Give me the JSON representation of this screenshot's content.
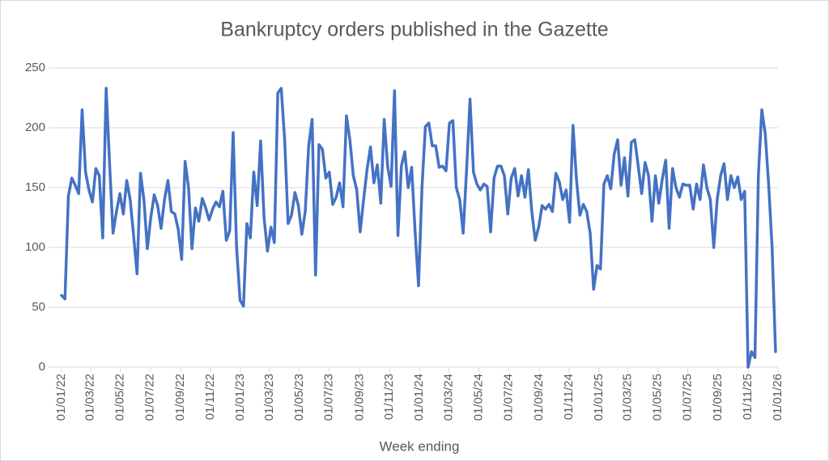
{
  "chart_data": {
    "type": "line",
    "title": "Bankruptcy orders published in the Gazette",
    "xlabel": "Week ending",
    "color": "#4472c4",
    "grid": true,
    "ylim": [
      0,
      250
    ],
    "yticks": [
      0,
      50,
      100,
      150,
      200,
      250
    ],
    "xlim": [
      "01/01/22",
      "01/01/26"
    ],
    "xticks": [
      "01/01/22",
      "01/03/22",
      "01/05/22",
      "01/07/22",
      "01/09/22",
      "01/11/22",
      "01/01/23",
      "01/03/23",
      "01/05/23",
      "01/07/23",
      "01/09/23",
      "01/11/23",
      "01/01/24",
      "01/03/24",
      "01/05/24",
      "01/07/24",
      "01/09/24",
      "01/11/24",
      "01/01/25",
      "01/03/25",
      "01/05/25",
      "01/07/25",
      "01/09/25",
      "01/11/25",
      "01/01/26"
    ],
    "x": [
      "01/01/22",
      "08/01/22",
      "15/01/22",
      "22/01/22",
      "29/01/22",
      "05/02/22",
      "12/02/22",
      "19/02/22",
      "26/02/22",
      "05/03/22",
      "12/03/22",
      "19/03/22",
      "26/03/22",
      "02/04/22",
      "09/04/22",
      "16/04/22",
      "23/04/22",
      "30/04/22",
      "07/05/22",
      "14/05/22",
      "21/05/22",
      "28/05/22",
      "04/06/22",
      "11/06/22",
      "18/06/22",
      "25/06/22",
      "02/07/22",
      "09/07/22",
      "16/07/22",
      "23/07/22",
      "30/07/22",
      "06/08/22",
      "13/08/22",
      "20/08/22",
      "27/08/22",
      "03/09/22",
      "10/09/22",
      "17/09/22",
      "24/09/22",
      "01/10/22",
      "08/10/22",
      "15/10/22",
      "22/10/22",
      "29/10/22",
      "05/11/22",
      "12/11/22",
      "19/11/22",
      "26/11/22",
      "03/12/22",
      "10/12/22",
      "17/12/22",
      "24/12/22",
      "31/12/22",
      "07/01/23",
      "14/01/23",
      "21/01/23",
      "28/01/23",
      "04/02/23",
      "11/02/23",
      "18/02/23",
      "25/02/23",
      "04/03/23",
      "11/03/23",
      "18/03/23",
      "25/03/23",
      "01/04/23",
      "08/04/23",
      "15/04/23",
      "22/04/23",
      "29/04/23",
      "06/05/23",
      "13/05/23",
      "20/05/23",
      "27/05/23",
      "03/06/23",
      "10/06/23",
      "17/06/23",
      "24/06/23",
      "01/07/23",
      "08/07/23",
      "15/07/23",
      "22/07/23",
      "29/07/23",
      "05/08/23",
      "12/08/23",
      "19/08/23",
      "26/08/23",
      "02/09/23",
      "09/09/23",
      "16/09/23",
      "23/09/23",
      "30/09/23",
      "07/10/23",
      "14/10/23",
      "21/10/23",
      "28/10/23",
      "04/11/23",
      "11/11/23",
      "18/11/23",
      "25/11/23",
      "02/12/23",
      "09/12/23",
      "16/12/23",
      "23/12/23",
      "30/12/23",
      "06/01/24",
      "13/01/24",
      "20/01/24",
      "27/01/24",
      "03/02/24",
      "10/02/24",
      "17/02/24",
      "24/02/24",
      "02/03/24",
      "09/03/24",
      "16/03/24",
      "23/03/24",
      "30/03/24",
      "06/04/24",
      "13/04/24",
      "20/04/24",
      "27/04/24",
      "04/05/24",
      "11/05/24",
      "18/05/24",
      "25/05/24",
      "01/06/24",
      "08/06/24",
      "15/06/24",
      "22/06/24",
      "29/06/24",
      "06/07/24",
      "13/07/24",
      "20/07/24",
      "27/07/24",
      "03/08/24",
      "10/08/24",
      "17/08/24",
      "24/08/24",
      "31/08/24",
      "07/09/24",
      "14/09/24",
      "21/09/24",
      "28/09/24",
      "05/10/24",
      "12/10/24",
      "19/10/24",
      "26/10/24",
      "02/11/24",
      "09/11/24",
      "16/11/24",
      "23/11/24",
      "30/11/24",
      "07/12/24",
      "14/12/24",
      "21/12/24",
      "28/12/24",
      "04/01/25",
      "11/01/25",
      "18/01/25",
      "25/01/25",
      "01/02/25",
      "08/02/25",
      "15/02/25",
      "22/02/25",
      "01/03/25",
      "08/03/25",
      "15/03/25",
      "22/03/25",
      "29/03/25",
      "05/04/25",
      "12/04/25",
      "19/04/25",
      "26/04/25",
      "03/05/25",
      "10/05/25",
      "17/05/25",
      "24/05/25",
      "31/05/25",
      "07/06/25",
      "14/06/25",
      "21/06/25",
      "28/06/25",
      "05/07/25",
      "12/07/25",
      "19/07/25",
      "26/07/25",
      "02/08/25",
      "09/08/25",
      "16/08/25",
      "23/08/25",
      "30/08/25",
      "06/09/25",
      "13/09/25",
      "20/09/25",
      "27/09/25",
      "04/10/25",
      "11/10/25",
      "18/10/25",
      "25/10/25",
      "01/11/25",
      "08/11/25",
      "15/11/25",
      "22/11/25",
      "29/11/25",
      "06/12/25",
      "13/12/25",
      "20/12/25",
      "27/12/25"
    ],
    "values": [
      60,
      57,
      143,
      158,
      152,
      145,
      215,
      163,
      148,
      138,
      166,
      160,
      108,
      233,
      170,
      112,
      130,
      145,
      128,
      156,
      140,
      110,
      78,
      162,
      140,
      99,
      125,
      144,
      135,
      116,
      140,
      156,
      130,
      128,
      115,
      90,
      172,
      150,
      99,
      133,
      122,
      141,
      133,
      123,
      132,
      138,
      134,
      147,
      106,
      114,
      196,
      100,
      56,
      51,
      120,
      108,
      163,
      135,
      189,
      125,
      97,
      117,
      104,
      229,
      233,
      190,
      120,
      127,
      146,
      135,
      111,
      130,
      185,
      207,
      77,
      186,
      182,
      158,
      163,
      136,
      142,
      154,
      134,
      210,
      190,
      160,
      148,
      113,
      140,
      165,
      184,
      154,
      169,
      137,
      207,
      168,
      151,
      231,
      110,
      168,
      180,
      150,
      167,
      113,
      68,
      150,
      201,
      204,
      185,
      185,
      167,
      168,
      164,
      204,
      206,
      150,
      140,
      112,
      165,
      224,
      163,
      153,
      148,
      153,
      151,
      113,
      158,
      168,
      168,
      160,
      128,
      158,
      166,
      143,
      160,
      142,
      165,
      130,
      106,
      117,
      135,
      132,
      136,
      130,
      162,
      155,
      140,
      148,
      121,
      202,
      157,
      127,
      136,
      130,
      112,
      65,
      85,
      82,
      153,
      160,
      149,
      178,
      190,
      152,
      175,
      143,
      188,
      190,
      168,
      145,
      171,
      160,
      122,
      160,
      137,
      157,
      173,
      116,
      166,
      150,
      142,
      153,
      152,
      152,
      132,
      153,
      140,
      169,
      150,
      140,
      100,
      140,
      160,
      170,
      140,
      160,
      150,
      159,
      140,
      147,
      0,
      13,
      8,
      160,
      215,
      195,
      152,
      100,
      13
    ]
  }
}
